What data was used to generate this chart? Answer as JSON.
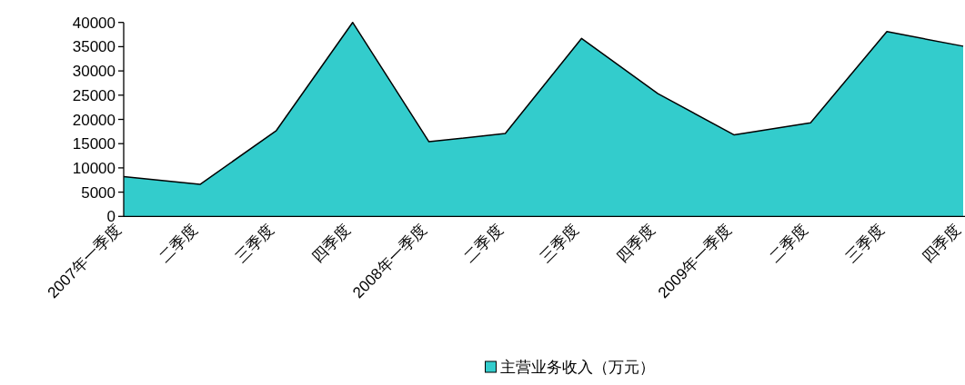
{
  "chart_data": {
    "type": "area",
    "categories": [
      "2007年一季度",
      "二季度",
      "三季度",
      "四季度",
      "2008年一季度",
      "二季度",
      "三季度",
      "四季度",
      "2009年一季度",
      "二季度",
      "三季度",
      "四季度"
    ],
    "series": [
      {
        "name": "主营业务收入（万元）",
        "color": "#33cccc",
        "values": [
          8200,
          6600,
          17700,
          40000,
          15400,
          17100,
          36700,
          25300,
          16800,
          19300,
          38100,
          35100
        ]
      }
    ],
    "ylim": [
      0,
      40000
    ],
    "yticks": [
      0,
      5000,
      10000,
      15000,
      20000,
      25000,
      30000,
      35000,
      40000
    ],
    "grid": false,
    "legend": "bottom"
  }
}
